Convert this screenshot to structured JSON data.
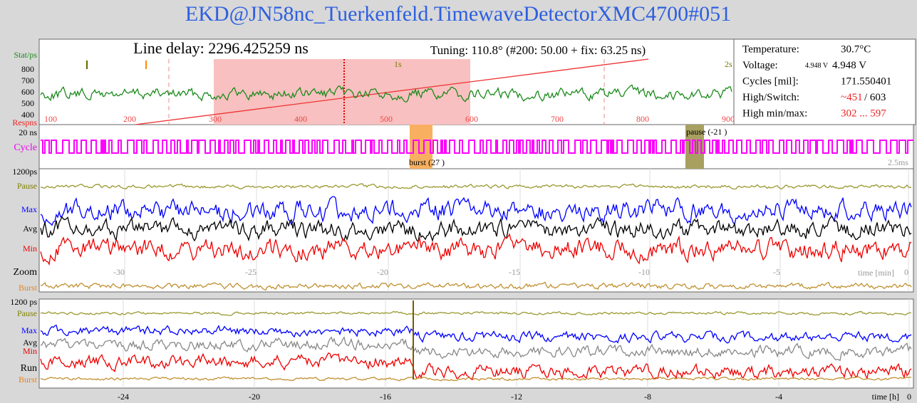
{
  "title": "EKD@JN58nc_Tuerkenfeld.TimewaveDetectorXMC4700#051",
  "delay_panel": {
    "line_delay": "Line delay: 2296.425259 ns",
    "tuning": "Tuning: 110.8° (#200: 50.00 + fix: 63.25 ns)",
    "y_label": "Stat/ps",
    "y_ticks": [
      "800",
      "700",
      "600",
      "500",
      "400"
    ],
    "x_label": "Respns",
    "x_ticks": [
      "100",
      "200",
      "300",
      "400",
      "500",
      "600",
      "700",
      "800",
      "900"
    ],
    "markers": [
      "1s",
      "2s"
    ]
  },
  "status": {
    "rows": [
      {
        "label": "Temperature:",
        "values": [
          "30.7°C"
        ]
      },
      {
        "label": "Voltage:",
        "values": [
          "4.948 V",
          "4.948 V"
        ]
      },
      {
        "label": "Cycles [mil]:",
        "values": [
          "171.550401"
        ]
      },
      {
        "label": "High/Switch:",
        "values": [
          "~451",
          "/ 603"
        ]
      },
      {
        "label": "High min/max:",
        "values": [
          "302 ... 597"
        ]
      }
    ]
  },
  "cycle_panel": {
    "scale": "20 ns",
    "label": "Cycle",
    "pause": "pause (-21 )",
    "burst": "burst (27 )",
    "span": "2.5ms"
  },
  "zoom_panel": {
    "scale": "1200ps",
    "labels": [
      "Pause",
      "Max",
      "Avg",
      "Min",
      "Zoom",
      "Burst"
    ],
    "x_ticks": [
      "-30",
      "-25",
      "-20",
      "-15",
      "-10",
      "-5",
      "0"
    ],
    "x_label": "time [min]"
  },
  "run_panel": {
    "scale": "1200 ps",
    "labels": [
      "Pause",
      "Max",
      "Avg",
      "Min",
      "Run",
      "Burst"
    ],
    "x_ticks": [
      "-24",
      "-20",
      "-16",
      "-12",
      "-8",
      "-4",
      "0"
    ],
    "x_label": "time [h]"
  }
}
